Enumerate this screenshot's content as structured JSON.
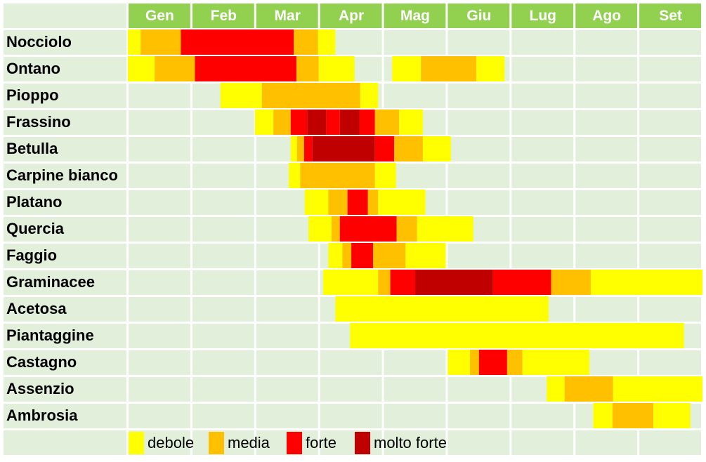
{
  "chart_data": {
    "type": "timeline",
    "categories": [
      "Gen",
      "Feb",
      "Mar",
      "Apr",
      "Mag",
      "Giu",
      "Lug",
      "Ago",
      "Set"
    ],
    "xlim": [
      0,
      9
    ],
    "levels": [
      {
        "name": "debole",
        "color": "#ffff00"
      },
      {
        "name": "media",
        "color": "#ffc000"
      },
      {
        "name": "forte",
        "color": "#ff0000"
      },
      {
        "name": "molto forte",
        "color": "#c00000"
      }
    ],
    "rows": [
      {
        "name": "Nocciolo",
        "periods": [
          [
            0,
            0.2,
            0
          ],
          [
            0.2,
            0.83,
            1
          ],
          [
            0.83,
            2.6,
            2
          ],
          [
            2.6,
            2.98,
            1
          ],
          [
            2.98,
            3.25,
            0
          ]
        ]
      },
      {
        "name": "Ontano",
        "periods": [
          [
            0,
            0.42,
            0
          ],
          [
            0.42,
            1.05,
            1
          ],
          [
            1.05,
            2.64,
            2
          ],
          [
            2.64,
            2.99,
            1
          ],
          [
            2.99,
            3.55,
            0
          ],
          [
            4.14,
            4.59,
            0
          ],
          [
            4.59,
            5.46,
            1
          ],
          [
            5.46,
            5.9,
            0
          ]
        ]
      },
      {
        "name": "Pioppo",
        "periods": [
          [
            1.45,
            2.1,
            0
          ],
          [
            2.1,
            3.64,
            1
          ],
          [
            3.64,
            3.92,
            0
          ]
        ]
      },
      {
        "name": "Frassino",
        "periods": [
          [
            1.99,
            2.28,
            0
          ],
          [
            2.28,
            2.55,
            1
          ],
          [
            2.55,
            2.81,
            2
          ],
          [
            2.81,
            3.11,
            3
          ],
          [
            3.11,
            3.32,
            2
          ],
          [
            3.32,
            3.63,
            3
          ],
          [
            3.63,
            3.87,
            2
          ],
          [
            3.87,
            4.25,
            1
          ],
          [
            4.25,
            4.62,
            0
          ]
        ]
      },
      {
        "name": "Betulla",
        "periods": [
          [
            2.55,
            2.65,
            0
          ],
          [
            2.65,
            2.76,
            1
          ],
          [
            2.76,
            2.89,
            2
          ],
          [
            2.89,
            3.87,
            3
          ],
          [
            3.87,
            4.17,
            2
          ],
          [
            4.17,
            4.62,
            1
          ],
          [
            4.62,
            5.06,
            0
          ]
        ]
      },
      {
        "name": "Carpine bianco",
        "periods": [
          [
            2.52,
            2.7,
            0
          ],
          [
            2.7,
            3.87,
            1
          ],
          [
            3.87,
            4.2,
            0
          ]
        ]
      },
      {
        "name": "Platano",
        "periods": [
          [
            2.77,
            3.14,
            0
          ],
          [
            3.14,
            3.44,
            1
          ],
          [
            3.44,
            3.76,
            2
          ],
          [
            3.76,
            3.92,
            1
          ],
          [
            3.92,
            4.66,
            0
          ]
        ]
      },
      {
        "name": "Quercia",
        "periods": [
          [
            2.83,
            3.19,
            0
          ],
          [
            3.19,
            3.32,
            1
          ],
          [
            3.32,
            4.21,
            2
          ],
          [
            4.21,
            4.53,
            1
          ],
          [
            4.53,
            5.41,
            0
          ]
        ]
      },
      {
        "name": "Faggio",
        "periods": [
          [
            3.14,
            3.36,
            0
          ],
          [
            3.36,
            3.5,
            1
          ],
          [
            3.5,
            3.84,
            2
          ],
          [
            3.84,
            4.35,
            1
          ],
          [
            4.35,
            4.98,
            0
          ]
        ]
      },
      {
        "name": "Graminacee",
        "periods": [
          [
            3.06,
            3.92,
            0
          ],
          [
            3.92,
            4.11,
            1
          ],
          [
            4.11,
            4.5,
            2
          ],
          [
            4.5,
            5.72,
            3
          ],
          [
            5.72,
            6.63,
            2
          ],
          [
            6.63,
            7.25,
            1
          ],
          [
            7.25,
            9,
            0
          ]
        ]
      },
      {
        "name": "Acetosa",
        "periods": [
          [
            3.25,
            6.59,
            0
          ]
        ]
      },
      {
        "name": "Piantaggine",
        "periods": [
          [
            3.48,
            8.71,
            0
          ]
        ]
      },
      {
        "name": "Castagno",
        "periods": [
          [
            5.01,
            5.36,
            0
          ],
          [
            5.36,
            5.5,
            1
          ],
          [
            5.5,
            5.94,
            2
          ],
          [
            5.94,
            6.18,
            1
          ],
          [
            6.18,
            7.23,
            0
          ]
        ]
      },
      {
        "name": "Assenzio",
        "periods": [
          [
            6.56,
            6.84,
            0
          ],
          [
            6.84,
            7.6,
            1
          ],
          [
            7.6,
            9,
            0
          ]
        ]
      },
      {
        "name": "Ambrosia",
        "periods": [
          [
            7.29,
            7.59,
            0
          ],
          [
            7.59,
            8.23,
            1
          ],
          [
            8.23,
            8.81,
            0
          ]
        ]
      }
    ]
  }
}
